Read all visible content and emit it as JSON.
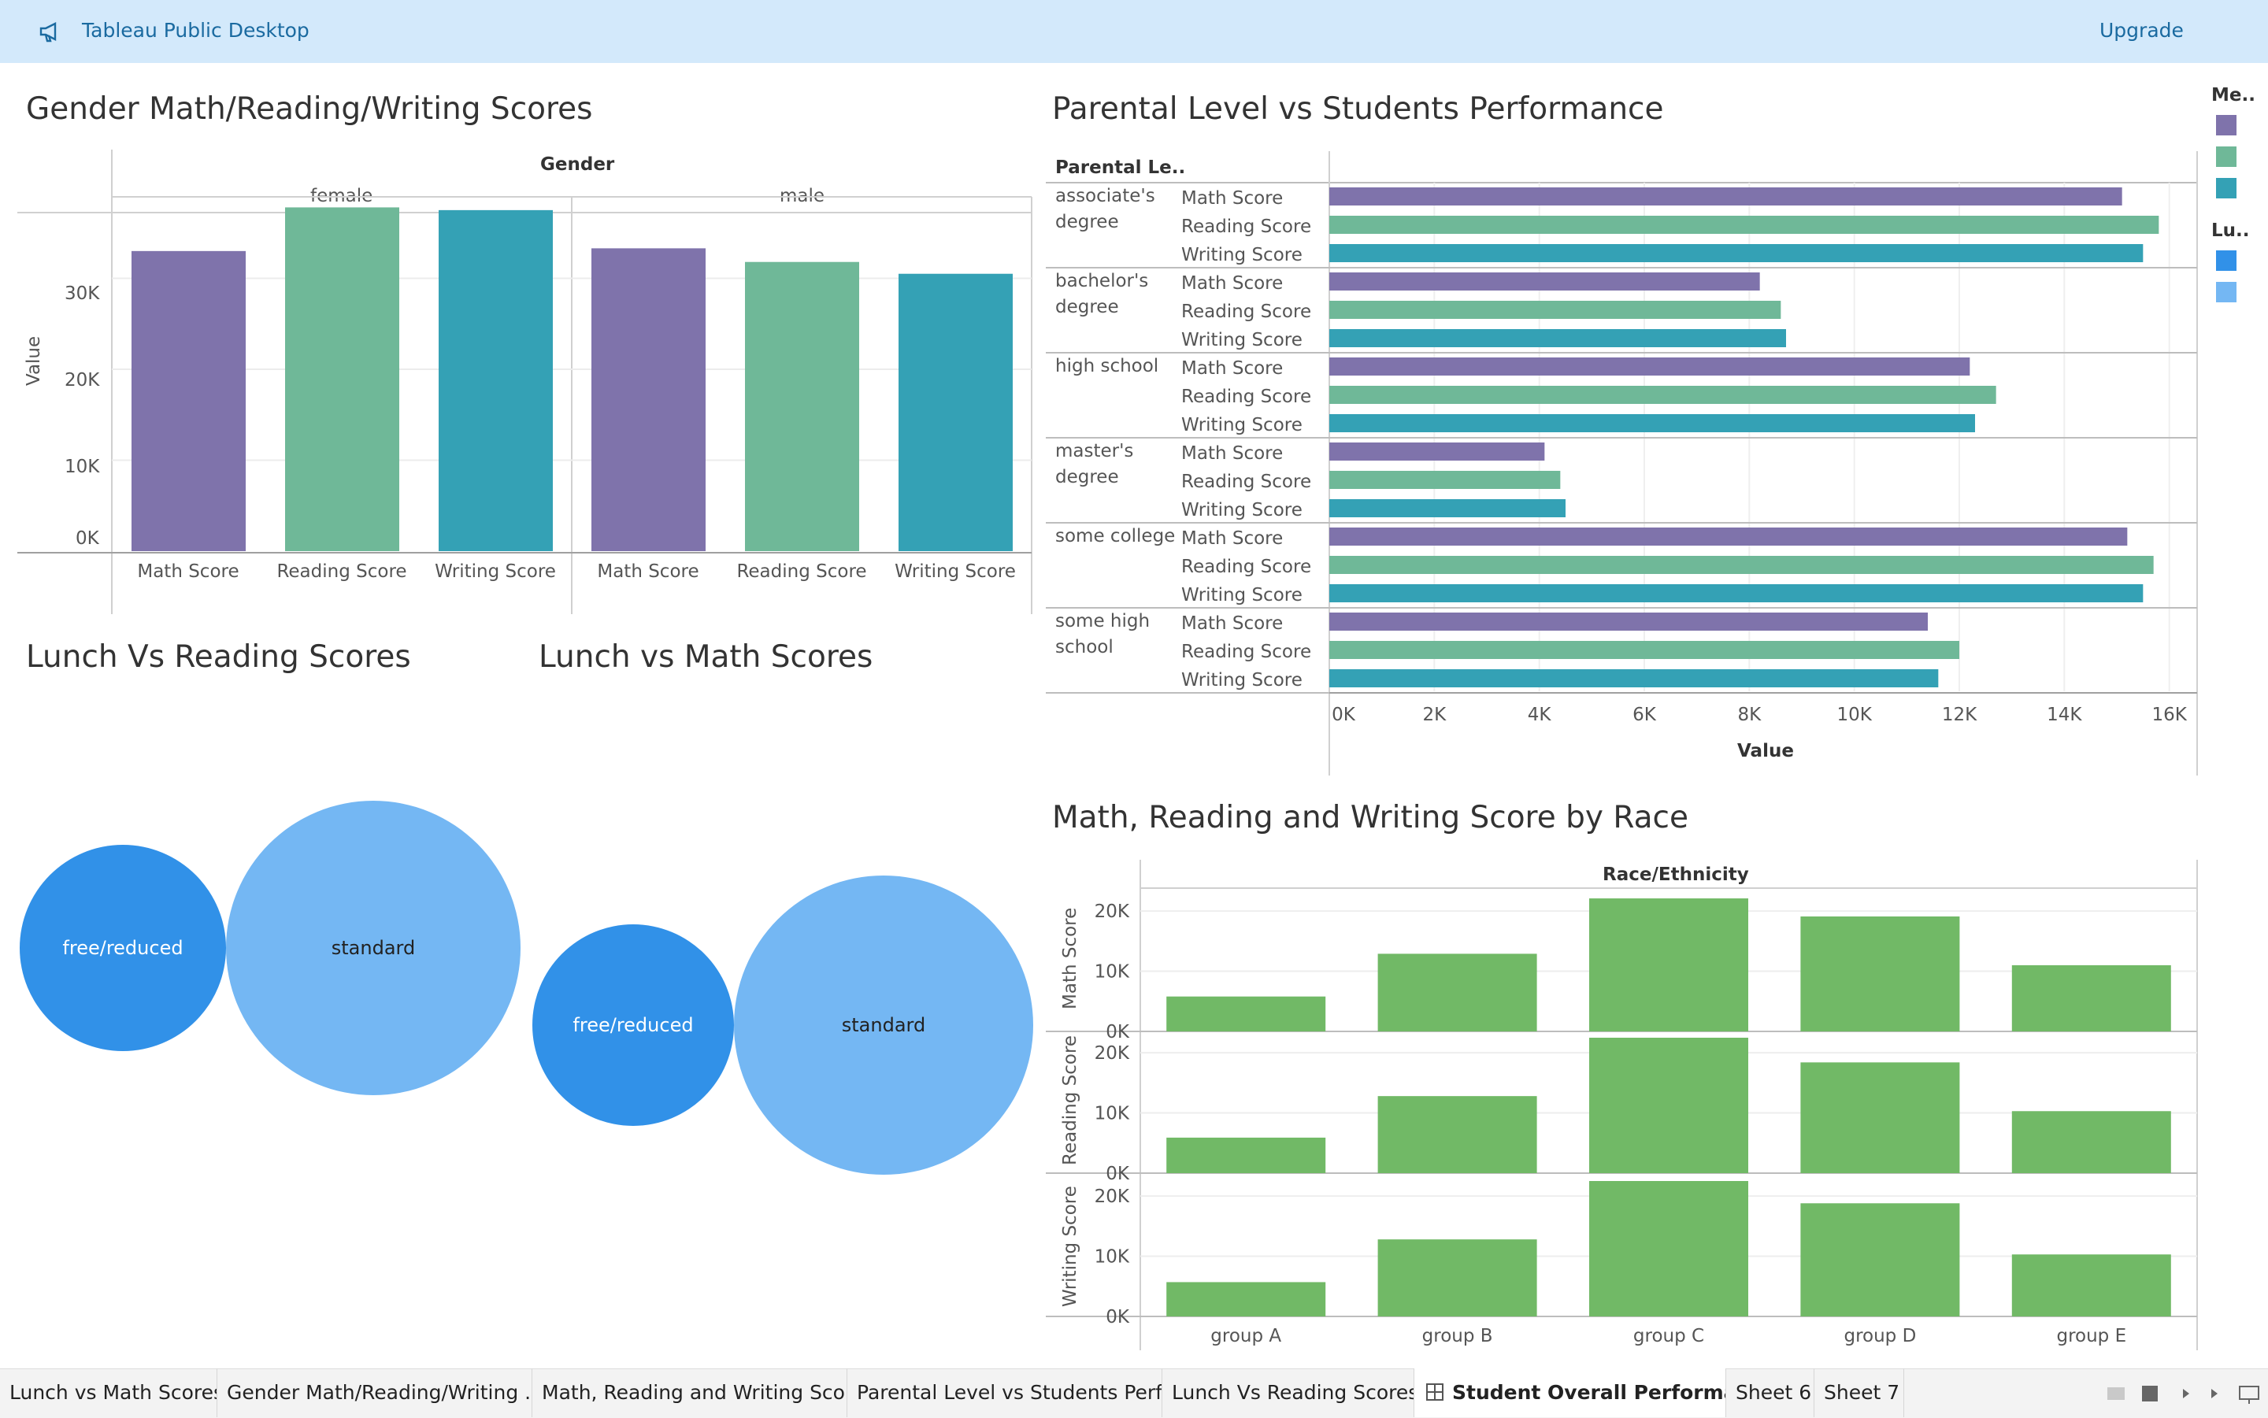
{
  "app": {
    "title": "Tableau Public Desktop",
    "upgrade_label": "Upgrade",
    "megaphone_icon": "megaphone-icon"
  },
  "gender_chart": {
    "title": "Gender Math/Reading/Writing Scores",
    "column_header": "Gender",
    "ylabel": "Value",
    "panels": [
      "female",
      "male"
    ],
    "yticks": [
      "30K",
      "20K",
      "10K",
      "0K"
    ]
  },
  "parental_chart": {
    "title": "Parental Level vs Students Performance",
    "row_header": "Parental Le..",
    "xlabel": "Value",
    "xticks": [
      "0K",
      "2K",
      "4K",
      "6K",
      "8K",
      "10K",
      "12K",
      "14K",
      "16K"
    ],
    "groups": [
      {
        "name_lines": [
          "associate's",
          "degree"
        ],
        "measures": [
          "Math Score",
          "Reading Score",
          "Writing Score"
        ]
      },
      {
        "name_lines": [
          "bachelor's",
          "degree"
        ],
        "measures": [
          "Math Score",
          "Reading Score",
          "Writing Score"
        ]
      },
      {
        "name_lines": [
          "high school"
        ],
        "measures": [
          "Math Score",
          "Reading Score",
          "Writing Score"
        ]
      },
      {
        "name_lines": [
          "master's",
          "degree"
        ],
        "measures": [
          "Math Score",
          "Reading Score",
          "Writing Score"
        ]
      },
      {
        "name_lines": [
          "some college"
        ],
        "measures": [
          "Math Score",
          "Reading Score",
          "Writing Score"
        ]
      },
      {
        "name_lines": [
          "some high",
          "school"
        ],
        "measures": [
          "Math Score",
          "Reading Score",
          "Writing Score"
        ]
      }
    ]
  },
  "legend": {
    "measure_title": "Me..",
    "measure_colors": [
      "#7f73ab",
      "#6fb898",
      "#34a1b5"
    ],
    "lunch_title": "Lu..",
    "lunch_colors": [
      "#3191e8",
      "#74b7f3"
    ]
  },
  "lunch_reading": {
    "title": "Lunch Vs Reading Scores"
  },
  "lunch_math": {
    "title": "Lunch vs Math Scores"
  },
  "race_chart": {
    "title": "Math, Reading and Writing Score by Race",
    "column_header": "Race/Ethnicity",
    "rows": [
      "Math Score",
      "Reading Score",
      "Writing Score"
    ],
    "yticks": [
      "20K",
      "10K",
      "0K"
    ]
  },
  "colors": {
    "math": "#7f73ab",
    "reading": "#6fb898",
    "writing": "#34a1b5",
    "race_bar": "#71b966",
    "lunch_free": "#3191e8",
    "lunch_standard": "#74b7f3"
  },
  "chart_data": [
    {
      "type": "bar",
      "title": "Gender Math/Reading/Writing Scores",
      "ylabel": "Value",
      "categories": [
        "Math Score",
        "Reading Score",
        "Writing Score"
      ],
      "series": [
        {
          "name": "female",
          "values": [
            33000,
            37800,
            37500
          ]
        },
        {
          "name": "male",
          "values": [
            33300,
            31800,
            30500
          ]
        }
      ],
      "ylim": [
        0,
        40000
      ]
    },
    {
      "type": "bar",
      "title": "Parental Level vs Students Performance",
      "xlabel": "Value",
      "orientation": "horizontal",
      "categories": [
        "associate's degree",
        "bachelor's degree",
        "high school",
        "master's degree",
        "some college",
        "some high school"
      ],
      "series": [
        {
          "name": "Math Score",
          "values": [
            15100,
            8200,
            12200,
            4100,
            15200,
            11400
          ]
        },
        {
          "name": "Reading Score",
          "values": [
            15800,
            8600,
            12700,
            4400,
            15700,
            12000
          ]
        },
        {
          "name": "Writing Score",
          "values": [
            15500,
            8700,
            12300,
            4500,
            15500,
            11600
          ]
        }
      ],
      "xlim": [
        0,
        16500
      ]
    },
    {
      "type": "scatter",
      "subtype": "packed-bubbles",
      "title": "Lunch Vs Reading Scores",
      "categories": [
        "free/reduced",
        "standard"
      ],
      "values": [
        0.5,
        1.0
      ]
    },
    {
      "type": "scatter",
      "subtype": "packed-bubbles",
      "title": "Lunch vs Math Scores",
      "categories": [
        "free/reduced",
        "standard"
      ],
      "values": [
        0.46,
        1.0
      ]
    },
    {
      "type": "bar",
      "title": "Math, Reading and Writing Score by Race",
      "xlabel": "Race/Ethnicity",
      "categories": [
        "group A",
        "group B",
        "group C",
        "group D",
        "group E"
      ],
      "series": [
        {
          "name": "Math Score",
          "values": [
            5800,
            12900,
            22100,
            19100,
            11000
          ]
        },
        {
          "name": "Reading Score",
          "values": [
            5900,
            12800,
            22500,
            18400,
            10300
          ]
        },
        {
          "name": "Writing Score",
          "values": [
            5700,
            12800,
            22500,
            18800,
            10300
          ]
        }
      ],
      "ylim": [
        0,
        22500
      ]
    }
  ],
  "tabs": [
    {
      "label": "Lunch vs Math Scores",
      "active": false
    },
    {
      "label": "Gender Math/Reading/Writing ...",
      "active": false
    },
    {
      "label": "Math, Reading and Writing Scor...",
      "active": false
    },
    {
      "label": "Parental Level vs Students Perfo...",
      "active": false
    },
    {
      "label": "Lunch Vs Reading Scores",
      "active": false
    },
    {
      "label": "Student Overall Performan...",
      "active": true
    },
    {
      "label": "Sheet 6",
      "active": false
    },
    {
      "label": "Sheet 7",
      "active": false
    }
  ]
}
